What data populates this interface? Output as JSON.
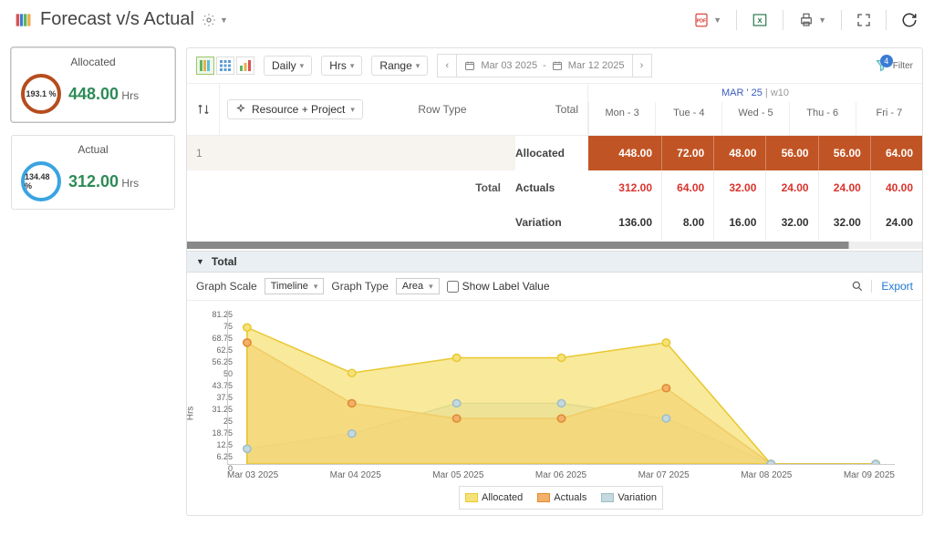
{
  "header": {
    "title": "Forecast v/s Actual"
  },
  "cards": {
    "allocated": {
      "title": "Allocated",
      "ring": "193.1 %",
      "val": "448.00",
      "unit": "Hrs",
      "ring_color": "#b54d1e",
      "val_color": "#2e8b57"
    },
    "actual": {
      "title": "Actual",
      "ring": "134.48 %",
      "val": "312.00",
      "unit": "Hrs",
      "ring_color": "#3aa4e0",
      "val_color": "#2e8b57"
    }
  },
  "toolbar": {
    "period": "Daily",
    "unit": "Hrs",
    "range_label": "Range",
    "date_from": "Mar 03 2025",
    "date_to": "Mar 12 2025",
    "filter_label": "Filter",
    "filter_badge": "4"
  },
  "grid": {
    "group_label": "Resource + Project",
    "rowtype_label": "Row Type",
    "total_label": "Total",
    "week_label_month": "MAR ' 25",
    "week_label_week": "w10",
    "days": [
      "Mon - 3",
      "Tue - 4",
      "Wed - 5",
      "Thu - 6",
      "Fri - 7"
    ],
    "row_idx": "1",
    "total_text": "Total",
    "rows": {
      "allocated": {
        "label": "Allocated",
        "total": "448.00",
        "cells": [
          "72.00",
          "48.00",
          "56.00",
          "56.00",
          "64.00"
        ]
      },
      "actuals": {
        "label": "Actuals",
        "total": "312.00",
        "cells": [
          "64.00",
          "32.00",
          "24.00",
          "24.00",
          "40.00"
        ]
      },
      "variation": {
        "label": "Variation",
        "total": "136.00",
        "cells": [
          "8.00",
          "16.00",
          "32.00",
          "32.00",
          "24.00"
        ]
      }
    }
  },
  "chart_head": {
    "arrow": "▼",
    "label": "Total"
  },
  "chart_toolbar": {
    "scale_label": "Graph Scale",
    "scale_val": "Timeline",
    "type_label": "Graph Type",
    "type_val": "Area",
    "show_label": "Show Label Value",
    "export": "Export"
  },
  "chart": {
    "y_label": "Hrs",
    "y_ticks": [
      "81.25",
      "75",
      "68.75",
      "62.5",
      "56.25",
      "50",
      "43.75",
      "37.5",
      "31.25",
      "25",
      "18.75",
      "12.5",
      "6.25",
      "0"
    ],
    "x_ticks": [
      "Mar 03 2025",
      "Mar 04 2025",
      "Mar 05 2025",
      "Mar 06 2025",
      "Mar 07 2025",
      "Mar 08 2025",
      "Mar 09 2025"
    ],
    "y_max": 81.25,
    "series": {
      "allocated": {
        "label": "Allocated",
        "fill": "#f6e27a",
        "stroke": "#e9c831",
        "values": [
          72,
          48,
          56,
          56,
          64,
          0,
          0
        ]
      },
      "actuals": {
        "label": "Actuals",
        "fill": "#f2b06a",
        "stroke": "#e08a2e",
        "values": [
          64,
          32,
          24,
          24,
          40,
          0,
          0
        ]
      },
      "variation": {
        "label": "Variation",
        "fill": "#c5d9de",
        "stroke": "#9cbfc8",
        "values": [
          8,
          16,
          32,
          32,
          24,
          0,
          0
        ]
      }
    }
  }
}
